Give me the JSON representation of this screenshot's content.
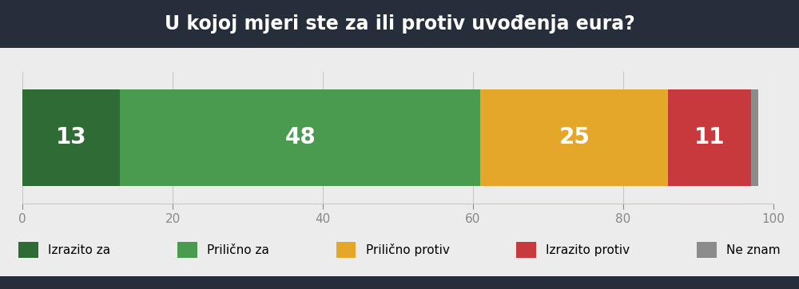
{
  "chart_data": {
    "type": "bar",
    "title": "U kojoj mjeri ste za ili protiv uvođenja eura?",
    "orientation": "horizontal",
    "stacked": true,
    "data_labels": true,
    "grid": true,
    "legend": "lower center",
    "tick_labels": "x",
    "categories": [
      null
    ],
    "xlim": [
      0,
      100
    ],
    "xticks": [
      0,
      20,
      40,
      60,
      80,
      100
    ],
    "series": [
      {
        "name": "Izrazito za",
        "color": "#2e6b35",
        "values": [
          13
        ],
        "value_labels": [
          "13"
        ]
      },
      {
        "name": "Prilično za",
        "color": "#4a9a4f",
        "values": [
          48
        ],
        "value_labels": [
          "48"
        ]
      },
      {
        "name": "Prilično protiv",
        "color": "#e4a72a",
        "values": [
          25
        ],
        "value_labels": [
          "25"
        ]
      },
      {
        "name": "Izrazito protiv",
        "color": "#c8393d",
        "values": [
          11
        ],
        "value_labels": [
          "11"
        ]
      },
      {
        "name": "Ne znam",
        "color": "#8c8c8c",
        "values": [
          1
        ],
        "value_labels": [
          null
        ]
      }
    ]
  }
}
